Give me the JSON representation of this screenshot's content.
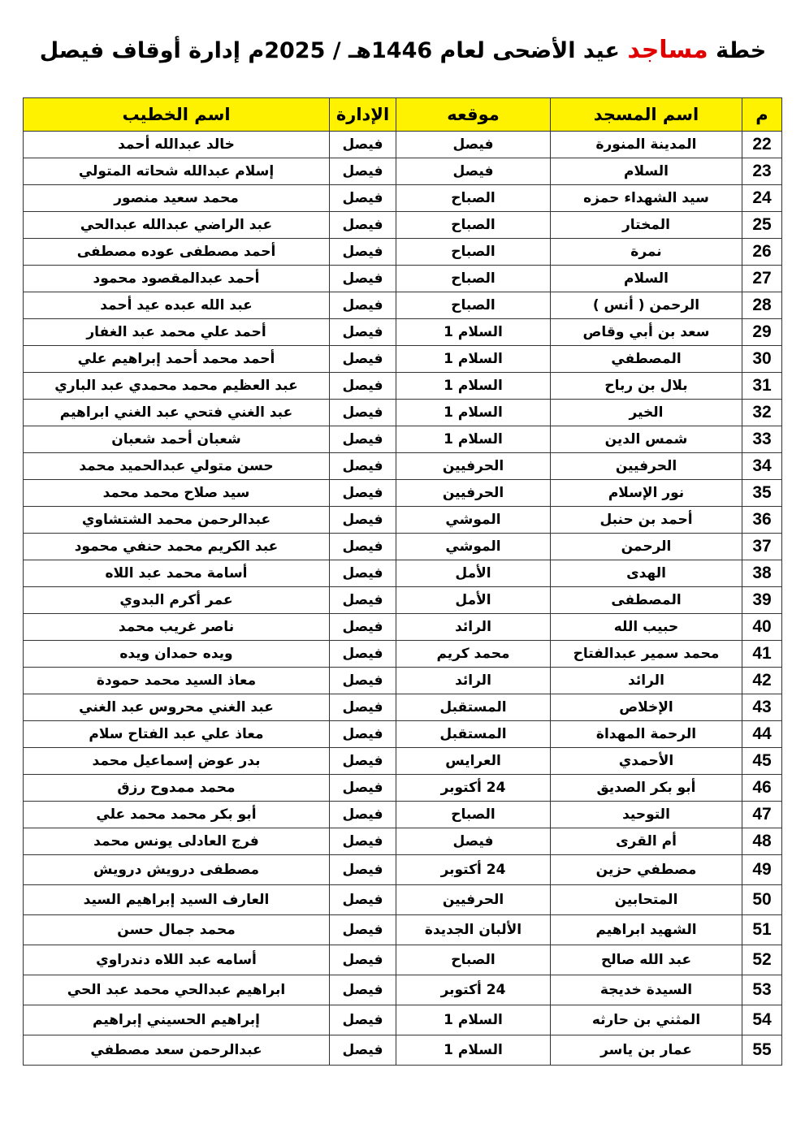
{
  "title": {
    "prefix": "خطة",
    "highlight": "مساجد",
    "rest": "عيد الأضحى لعام 1446هـ / 2025م إدارة أوقاف فيصل",
    "highlight_color": "#e00000"
  },
  "table": {
    "header_color": "#fff200",
    "headers": {
      "num": "م",
      "mosque": "اسم المسجد",
      "location": "موقعه",
      "admin": "الإدارة",
      "preacher": "اسم الخطيب"
    },
    "rows": [
      {
        "num": "22",
        "mosque": "المدينة المنورة",
        "location": "فيصل",
        "admin": "فيصل",
        "preacher": "خالد عبدالله أحمد"
      },
      {
        "num": "23",
        "mosque": "السلام",
        "location": "فيصل",
        "admin": "فيصل",
        "preacher": "إسلام عبدالله شحاته المتولي"
      },
      {
        "num": "24",
        "mosque": "سيد الشهداء حمزه",
        "location": "الصباح",
        "admin": "فيصل",
        "preacher": "محمد سعيد منصور"
      },
      {
        "num": "25",
        "mosque": "المختار",
        "location": "الصباح",
        "admin": "فيصل",
        "preacher": "عبد الراضي عبدالله عبدالحي"
      },
      {
        "num": "26",
        "mosque": "نمرة",
        "location": "الصباح",
        "admin": "فيصل",
        "preacher": "أحمد مصطفى عوده مصطفى"
      },
      {
        "num": "27",
        "mosque": "السلام",
        "location": "الصباح",
        "admin": "فيصل",
        "preacher": "أحمد عبدالمقصود محمود"
      },
      {
        "num": "28",
        "mosque": "الرحمن ( أنس )",
        "location": "الصباح",
        "admin": "فيصل",
        "preacher": "عبد الله عبده عيد أحمد"
      },
      {
        "num": "29",
        "mosque": "سعد بن أبي وقاص",
        "location": "السلام 1",
        "admin": "فيصل",
        "preacher": "أحمد علي محمد عبد الغفار"
      },
      {
        "num": "30",
        "mosque": "المصطفي",
        "location": "السلام 1",
        "admin": "فيصل",
        "preacher": "أحمد محمد أحمد إبراهيم علي"
      },
      {
        "num": "31",
        "mosque": "بلال بن رباح",
        "location": "السلام 1",
        "admin": "فيصل",
        "preacher": "عبد العظيم محمد محمدي عبد الباري"
      },
      {
        "num": "32",
        "mosque": "الخير",
        "location": "السلام 1",
        "admin": "فيصل",
        "preacher": "عبد الغني فتحي عبد الغني ابراهيم"
      },
      {
        "num": "33",
        "mosque": "شمس الدين",
        "location": "السلام 1",
        "admin": "فيصل",
        "preacher": "شعبان أحمد شعبان"
      },
      {
        "num": "34",
        "mosque": "الحرفيين",
        "location": "الحرفيين",
        "admin": "فيصل",
        "preacher": "حسن متولي عبدالحميد محمد"
      },
      {
        "num": "35",
        "mosque": "نور الإسلام",
        "location": "الحرفيين",
        "admin": "فيصل",
        "preacher": "سيد صلاح محمد محمد"
      },
      {
        "num": "36",
        "mosque": "أحمد بن حنبل",
        "location": "الموشي",
        "admin": "فيصل",
        "preacher": "عبدالرحمن محمد الشتشاوي"
      },
      {
        "num": "37",
        "mosque": "الرحمن",
        "location": "الموشي",
        "admin": "فيصل",
        "preacher": "عبد الكريم محمد حنفي محمود"
      },
      {
        "num": "38",
        "mosque": "الهدى",
        "location": "الأمل",
        "admin": "فيصل",
        "preacher": "أسامة محمد عبد اللاه"
      },
      {
        "num": "39",
        "mosque": "المصطفى",
        "location": "الأمل",
        "admin": "فيصل",
        "preacher": "عمر أكرم البدوي"
      },
      {
        "num": "40",
        "mosque": "حبيب الله",
        "location": "الرائد",
        "admin": "فيصل",
        "preacher": "ناصر غريب محمد"
      },
      {
        "num": "41",
        "mosque": "محمد سمير عبدالفتاح",
        "location": "محمد كريم",
        "admin": "فيصل",
        "preacher": "ويده حمدان ويده"
      },
      {
        "num": "42",
        "mosque": "الرائد",
        "location": "الرائد",
        "admin": "فيصل",
        "preacher": "معاذ السيد محمد حمودة"
      },
      {
        "num": "43",
        "mosque": "الإخلاص",
        "location": "المستقبل",
        "admin": "فيصل",
        "preacher": "عبد الغني محروس عبد الغني"
      },
      {
        "num": "44",
        "mosque": "الرحمة المهداة",
        "location": "المستقبل",
        "admin": "فيصل",
        "preacher": "معاذ علي عبد الفتاح سلام"
      },
      {
        "num": "45",
        "mosque": "الأحمدي",
        "location": "العرايس",
        "admin": "فيصل",
        "preacher": "بدر عوض إسماعيل محمد"
      },
      {
        "num": "46",
        "mosque": "أبو بكر الصديق",
        "location": "24 أكتوبر",
        "admin": "فيصل",
        "preacher": "محمد ممدوح رزق"
      },
      {
        "num": "47",
        "mosque": "التوحيد",
        "location": "الصباح",
        "admin": "فيصل",
        "preacher": "أبو بكر محمد محمد علي"
      },
      {
        "num": "48",
        "mosque": "أم القرى",
        "location": "فيصل",
        "admin": "فيصل",
        "preacher": "فرج العادلى يونس محمد"
      },
      {
        "num": "49",
        "mosque": "مصطفي حزين",
        "location": "24 أكتوبر",
        "admin": "فيصل",
        "preacher": "مصطفى درويش درويش"
      },
      {
        "num": "50",
        "mosque": "المتحابين",
        "location": "الحرفيين",
        "admin": "فيصل",
        "preacher": "العارف السيد إبراهيم السيد"
      },
      {
        "num": "51",
        "mosque": "الشهيد ابراهيم",
        "location": "الألبان الجديدة",
        "admin": "فيصل",
        "preacher": "محمد جمال حسن"
      },
      {
        "num": "52",
        "mosque": "عبد الله صالح",
        "location": "الصباح",
        "admin": "فيصل",
        "preacher": "أسامه عبد اللاه دندراوي"
      },
      {
        "num": "53",
        "mosque": "السيدة خديجة",
        "location": "24 أكتوبر",
        "admin": "فيصل",
        "preacher": "ابراهيم عبدالحي محمد عبد الحي"
      },
      {
        "num": "54",
        "mosque": "المثني بن حارثه",
        "location": "السلام 1",
        "admin": "فيصل",
        "preacher": "إبراهيم الحسيني إبراهيم"
      },
      {
        "num": "55",
        "mosque": "عمار بن ياسر",
        "location": "السلام 1",
        "admin": "فيصل",
        "preacher": "عبدالرحمن سعد مصطفي"
      }
    ]
  }
}
